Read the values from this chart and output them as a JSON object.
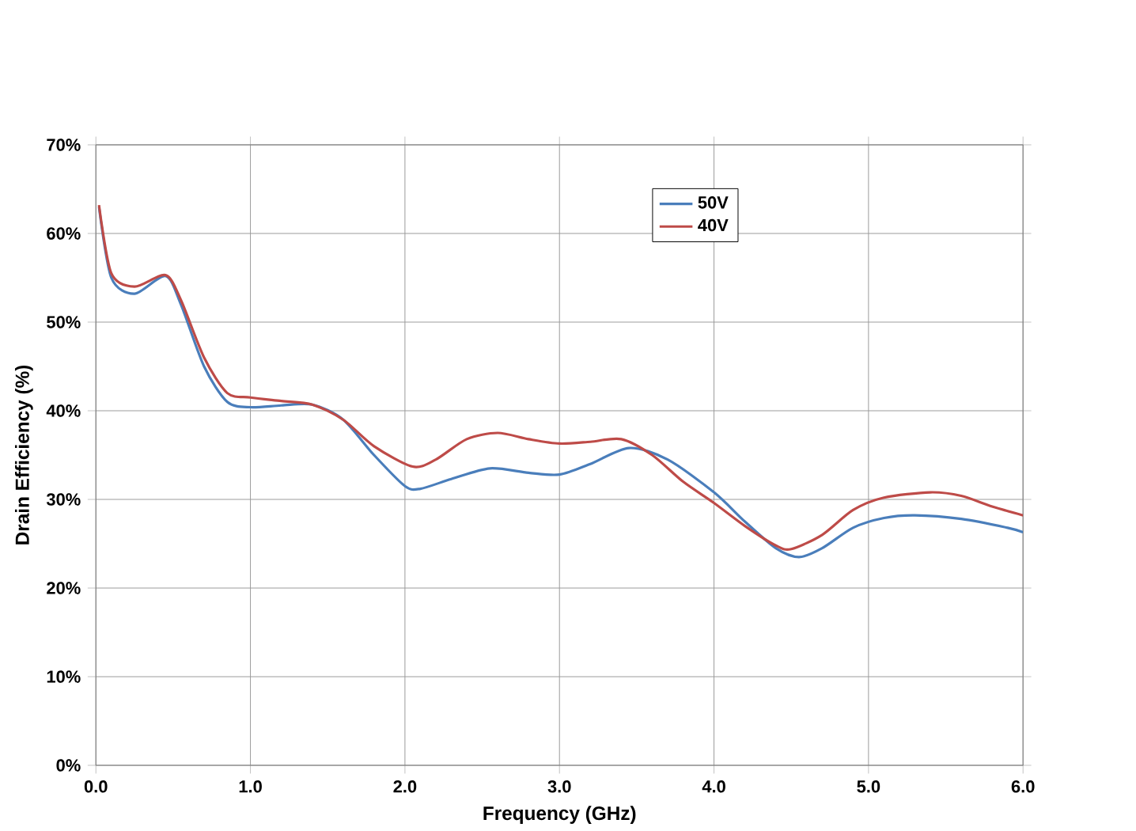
{
  "chart_data": {
    "type": "line",
    "xlabel": "Frequency (GHz)",
    "ylabel": "Drain Efficiency (%)",
    "xlim": [
      0,
      6
    ],
    "ylim": [
      0,
      70
    ],
    "xticks": [
      {
        "value": 0,
        "label": "0.0"
      },
      {
        "value": 1,
        "label": "1.0"
      },
      {
        "value": 2,
        "label": "2.0"
      },
      {
        "value": 3,
        "label": "3.0"
      },
      {
        "value": 4,
        "label": "4.0"
      },
      {
        "value": 5,
        "label": "5.0"
      },
      {
        "value": 6,
        "label": "6.0"
      }
    ],
    "yticks": [
      {
        "value": 0,
        "label": "0%"
      },
      {
        "value": 10,
        "label": "10%"
      },
      {
        "value": 20,
        "label": "20%"
      },
      {
        "value": 30,
        "label": "30%"
      },
      {
        "value": 40,
        "label": "40%"
      },
      {
        "value": 50,
        "label": "50%"
      },
      {
        "value": 60,
        "label": "60%"
      },
      {
        "value": 70,
        "label": "70%"
      }
    ],
    "grid": true,
    "legend": "top right",
    "marker": "none",
    "line_style": "solid",
    "series": [
      {
        "name": "50V",
        "color": "#4a7ebb",
        "x": [
          0.02,
          0.1,
          0.25,
          0.45,
          0.55,
          0.7,
          0.85,
          1.0,
          1.2,
          1.4,
          1.6,
          1.8,
          2.0,
          2.1,
          2.3,
          2.55,
          2.8,
          3.0,
          3.2,
          3.45,
          3.7,
          4.0,
          4.2,
          4.4,
          4.55,
          4.7,
          4.9,
          5.1,
          5.3,
          5.6,
          5.9,
          6.0
        ],
        "values": [
          63,
          55,
          53.2,
          55.2,
          52,
          45,
          41,
          40.4,
          40.6,
          40.7,
          39,
          35,
          31.5,
          31.2,
          32.3,
          33.5,
          33,
          32.8,
          34,
          35.8,
          34.5,
          30.8,
          27.5,
          24.5,
          23.5,
          24.5,
          26.8,
          27.9,
          28.2,
          27.8,
          26.8,
          26.3
        ]
      },
      {
        "name": "40V",
        "color": "#be4b48",
        "x": [
          0.02,
          0.1,
          0.25,
          0.45,
          0.55,
          0.7,
          0.85,
          1.0,
          1.2,
          1.4,
          1.6,
          1.8,
          2.05,
          2.2,
          2.4,
          2.6,
          2.8,
          3.0,
          3.2,
          3.4,
          3.6,
          3.8,
          4.0,
          4.2,
          4.4,
          4.5,
          4.7,
          4.9,
          5.1,
          5.4,
          5.6,
          5.8,
          6.0
        ],
        "values": [
          63.2,
          55.5,
          54,
          55.3,
          52.5,
          46,
          42,
          41.5,
          41.1,
          40.7,
          39,
          36,
          33.7,
          34.5,
          36.8,
          37.5,
          36.8,
          36.3,
          36.5,
          36.8,
          35,
          32,
          29.6,
          27,
          24.8,
          24.4,
          26,
          28.8,
          30.2,
          30.8,
          30.4,
          29.2,
          28.2
        ]
      }
    ]
  }
}
